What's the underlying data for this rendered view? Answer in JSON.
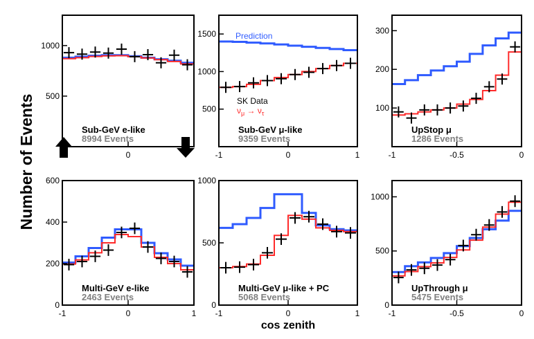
{
  "figure": {
    "ylabel": "Number of Events",
    "xlabel": "cos zenith",
    "colors": {
      "prediction": "#2f5bff",
      "oscillation": "#ff2a2a",
      "data": "#000000",
      "events_text": "#808080"
    }
  },
  "chart_data": [
    {
      "type": "line",
      "title": "Sub-GeV e-like",
      "events": "8994 Events",
      "xlim": [
        -1,
        1
      ],
      "ylim": [
        0,
        1300
      ],
      "xticks": [
        "0"
      ],
      "yticks": [
        500,
        1000
      ],
      "x": [
        -0.9,
        -0.7,
        -0.5,
        -0.3,
        -0.1,
        0.1,
        0.3,
        0.5,
        0.7,
        0.9
      ],
      "series": [
        {
          "role": "prediction",
          "values": [
            880,
            890,
            900,
            905,
            905,
            895,
            880,
            865,
            850,
            830
          ]
        },
        {
          "role": "oscillation",
          "values": [
            870,
            880,
            892,
            898,
            900,
            890,
            878,
            860,
            842,
            818
          ]
        },
        {
          "role": "data",
          "values": [
            930,
            915,
            935,
            925,
            965,
            890,
            910,
            830,
            905,
            810
          ]
        }
      ],
      "arrows": [
        "up",
        "down"
      ]
    },
    {
      "type": "line",
      "title": "Sub-GeV μ-like",
      "events": "9359 Events",
      "xlim": [
        -1,
        1
      ],
      "ylim": [
        0,
        1750
      ],
      "xticks": [
        "-1",
        "0",
        "1"
      ],
      "yticks": [
        500,
        1000,
        1500
      ],
      "x": [
        -0.9,
        -0.7,
        -0.5,
        -0.3,
        -0.1,
        0.1,
        0.3,
        0.5,
        0.7,
        0.9
      ],
      "series": [
        {
          "name": "Prediction",
          "role": "prediction",
          "values": [
            1400,
            1395,
            1385,
            1375,
            1360,
            1345,
            1330,
            1315,
            1300,
            1285
          ]
        },
        {
          "role": "oscillation",
          "values": [
            790,
            800,
            830,
            880,
            920,
            960,
            1000,
            1040,
            1080,
            1110
          ]
        },
        {
          "role": "data",
          "values": [
            790,
            800,
            850,
            880,
            905,
            960,
            990,
            1040,
            1080,
            1110
          ]
        }
      ],
      "legend": {
        "data": "SK Data",
        "osc_main": "ν",
        "osc_main_sub": "μ",
        "osc_arrow": " → ν",
        "osc_arrow_sub": "τ"
      }
    },
    {
      "type": "line",
      "title": "UpStop μ",
      "events": "1286 Events",
      "xlim": [
        -1,
        0
      ],
      "ylim": [
        0,
        340
      ],
      "xticks": [
        "-1",
        "-0.5",
        "0"
      ],
      "yticks": [
        100,
        200,
        300
      ],
      "x": [
        -0.95,
        -0.85,
        -0.75,
        -0.65,
        -0.55,
        -0.45,
        -0.35,
        -0.25,
        -0.15,
        -0.05
      ],
      "series": [
        {
          "role": "prediction",
          "values": [
            162,
            172,
            185,
            197,
            208,
            220,
            240,
            262,
            280,
            295
          ]
        },
        {
          "role": "oscillation",
          "values": [
            82,
            85,
            90,
            95,
            100,
            110,
            122,
            145,
            185,
            245
          ]
        },
        {
          "role": "data",
          "values": [
            90,
            74,
            95,
            95,
            100,
            105,
            125,
            155,
            175,
            258
          ]
        }
      ]
    },
    {
      "type": "line",
      "title": "Multi-GeV e-like",
      "events": "2463 Events",
      "xlim": [
        -1,
        1
      ],
      "ylim": [
        0,
        600
      ],
      "xticks": [
        "-1",
        "0",
        "1"
      ],
      "yticks": [
        0,
        200,
        400,
        600
      ],
      "x": [
        -0.9,
        -0.7,
        -0.5,
        -0.3,
        -0.1,
        0.1,
        0.3,
        0.5,
        0.7,
        0.9
      ],
      "series": [
        {
          "role": "prediction",
          "values": [
            205,
            235,
            275,
            325,
            365,
            365,
            300,
            250,
            220,
            190
          ]
        },
        {
          "role": "oscillation",
          "values": [
            198,
            218,
            252,
            300,
            340,
            330,
            280,
            230,
            200,
            170
          ]
        },
        {
          "role": "data",
          "values": [
            195,
            210,
            235,
            265,
            350,
            370,
            280,
            225,
            210,
            160
          ]
        }
      ]
    },
    {
      "type": "line",
      "title": "Multi-GeV μ-like + PC",
      "events": "5068 Events",
      "xlim": [
        -1,
        1
      ],
      "ylim": [
        0,
        1000
      ],
      "xticks": [
        "-1",
        "0",
        "1"
      ],
      "yticks": [
        0,
        500,
        1000
      ],
      "x": [
        -0.9,
        -0.7,
        -0.5,
        -0.3,
        -0.1,
        0.1,
        0.3,
        0.5,
        0.7,
        0.9
      ],
      "series": [
        {
          "role": "prediction",
          "values": [
            620,
            650,
            700,
            780,
            890,
            890,
            740,
            640,
            610,
            600
          ]
        },
        {
          "role": "oscillation",
          "values": [
            300,
            310,
            330,
            400,
            560,
            720,
            690,
            620,
            600,
            590
          ]
        },
        {
          "role": "data",
          "values": [
            300,
            305,
            325,
            420,
            530,
            700,
            710,
            650,
            590,
            580
          ]
        }
      ]
    },
    {
      "type": "line",
      "title": "UpThrough μ",
      "events": "5475 Events",
      "xlim": [
        -1,
        0
      ],
      "ylim": [
        0,
        1150
      ],
      "xticks": [
        "-1",
        "-0.5",
        "0"
      ],
      "yticks": [
        0,
        500,
        1000
      ],
      "x": [
        -0.95,
        -0.85,
        -0.75,
        -0.65,
        -0.55,
        -0.45,
        -0.35,
        -0.25,
        -0.15,
        -0.05
      ],
      "series": [
        {
          "role": "prediction",
          "values": [
            305,
            360,
            395,
            435,
            480,
            545,
            620,
            700,
            780,
            870
          ]
        },
        {
          "role": "oscillation",
          "values": [
            270,
            310,
            355,
            390,
            440,
            510,
            600,
            720,
            840,
            950
          ]
        },
        {
          "role": "data",
          "values": [
            255,
            325,
            340,
            370,
            420,
            550,
            650,
            740,
            860,
            960
          ]
        }
      ]
    }
  ]
}
